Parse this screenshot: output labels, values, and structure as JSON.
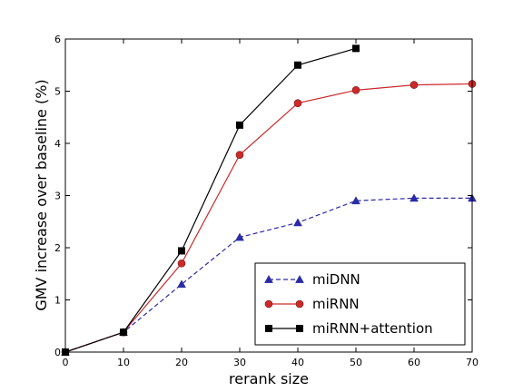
{
  "chart_data": {
    "type": "line",
    "title": "",
    "xlabel": "rerank size",
    "ylabel": "GMV increase over baseline (%)",
    "xlim": [
      0,
      70
    ],
    "ylim": [
      0,
      6
    ],
    "xticks": [
      "0",
      "10",
      "20",
      "30",
      "40",
      "50",
      "60",
      "70"
    ],
    "yticks": [
      "0",
      "1",
      "2",
      "3",
      "4",
      "5",
      "6"
    ],
    "grid": false,
    "legend_position": "lower-right",
    "series": [
      {
        "name": "miDNN",
        "color": "#2b2ba6",
        "marker": "triangle",
        "linestyle": "dashed",
        "x": [
          0,
          10,
          20,
          30,
          40,
          50,
          60,
          70
        ],
        "y": [
          0.0,
          0.38,
          1.3,
          2.2,
          2.48,
          2.9,
          2.95,
          2.95
        ]
      },
      {
        "name": "miRNN",
        "color": "#cc2a2a",
        "marker": "circle",
        "linestyle": "solid",
        "x": [
          0,
          10,
          20,
          30,
          40,
          50,
          60,
          70
        ],
        "y": [
          0.0,
          0.38,
          1.7,
          3.78,
          4.77,
          5.02,
          5.12,
          5.14
        ]
      },
      {
        "name": "miRNN+attention",
        "color": "#000000",
        "marker": "square",
        "linestyle": "solid",
        "x": [
          0,
          10,
          20,
          30,
          40,
          50
        ],
        "y": [
          0.0,
          0.38,
          1.94,
          4.35,
          5.5,
          5.82
        ]
      }
    ]
  }
}
